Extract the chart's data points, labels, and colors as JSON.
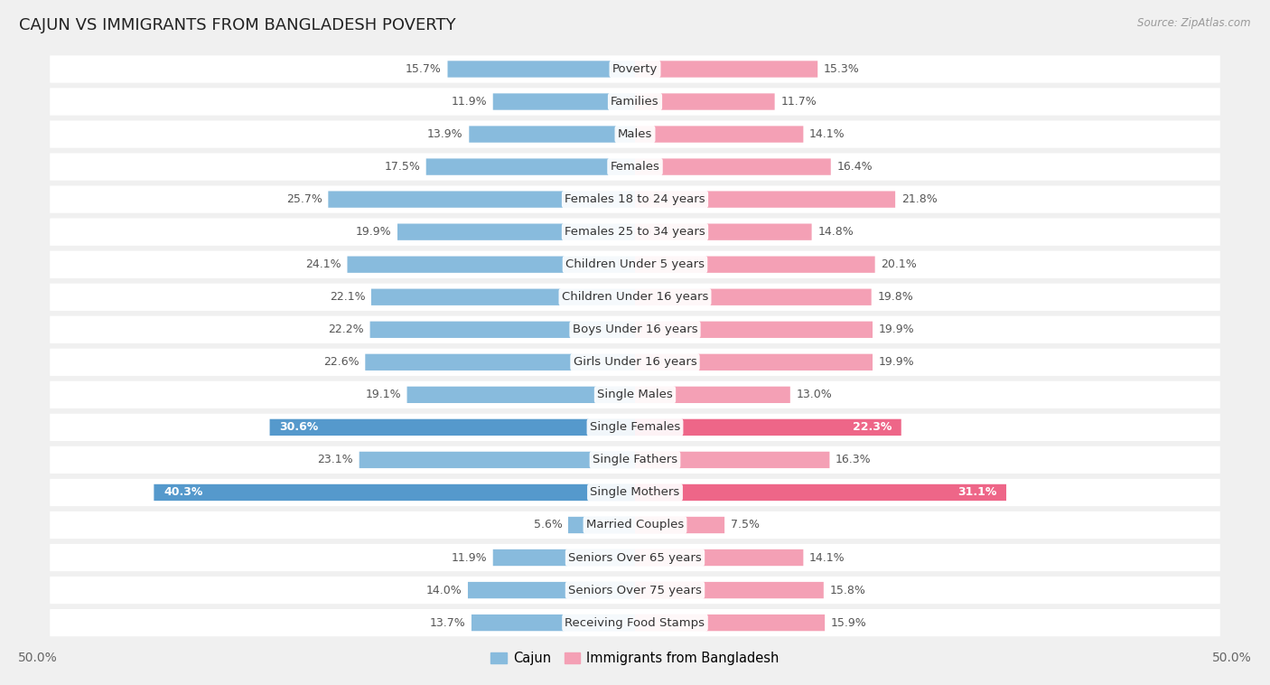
{
  "title": "CAJUN VS IMMIGRANTS FROM BANGLADESH POVERTY",
  "source": "Source: ZipAtlas.com",
  "categories": [
    "Poverty",
    "Families",
    "Males",
    "Females",
    "Females 18 to 24 years",
    "Females 25 to 34 years",
    "Children Under 5 years",
    "Children Under 16 years",
    "Boys Under 16 years",
    "Girls Under 16 years",
    "Single Males",
    "Single Females",
    "Single Fathers",
    "Single Mothers",
    "Married Couples",
    "Seniors Over 65 years",
    "Seniors Over 75 years",
    "Receiving Food Stamps"
  ],
  "cajun": [
    15.7,
    11.9,
    13.9,
    17.5,
    25.7,
    19.9,
    24.1,
    22.1,
    22.2,
    22.6,
    19.1,
    30.6,
    23.1,
    40.3,
    5.6,
    11.9,
    14.0,
    13.7
  ],
  "bangladesh": [
    15.3,
    11.7,
    14.1,
    16.4,
    21.8,
    14.8,
    20.1,
    19.8,
    19.9,
    19.9,
    13.0,
    22.3,
    16.3,
    31.1,
    7.5,
    14.1,
    15.8,
    15.9
  ],
  "cajun_color": "#88bbdd",
  "bangladesh_color": "#f4a0b5",
  "cajun_highlight_color": "#5599cc",
  "bangladesh_highlight_color": "#ee6688",
  "highlight_rows": [
    11,
    13
  ],
  "axis_max": 50.0,
  "legend_cajun": "Cajun",
  "legend_bangladesh": "Immigrants from Bangladesh",
  "bg_color": "#f0f0f0",
  "row_bg_color": "#ffffff",
  "label_fontsize": 9.5,
  "value_fontsize": 9.0,
  "title_fontsize": 13
}
